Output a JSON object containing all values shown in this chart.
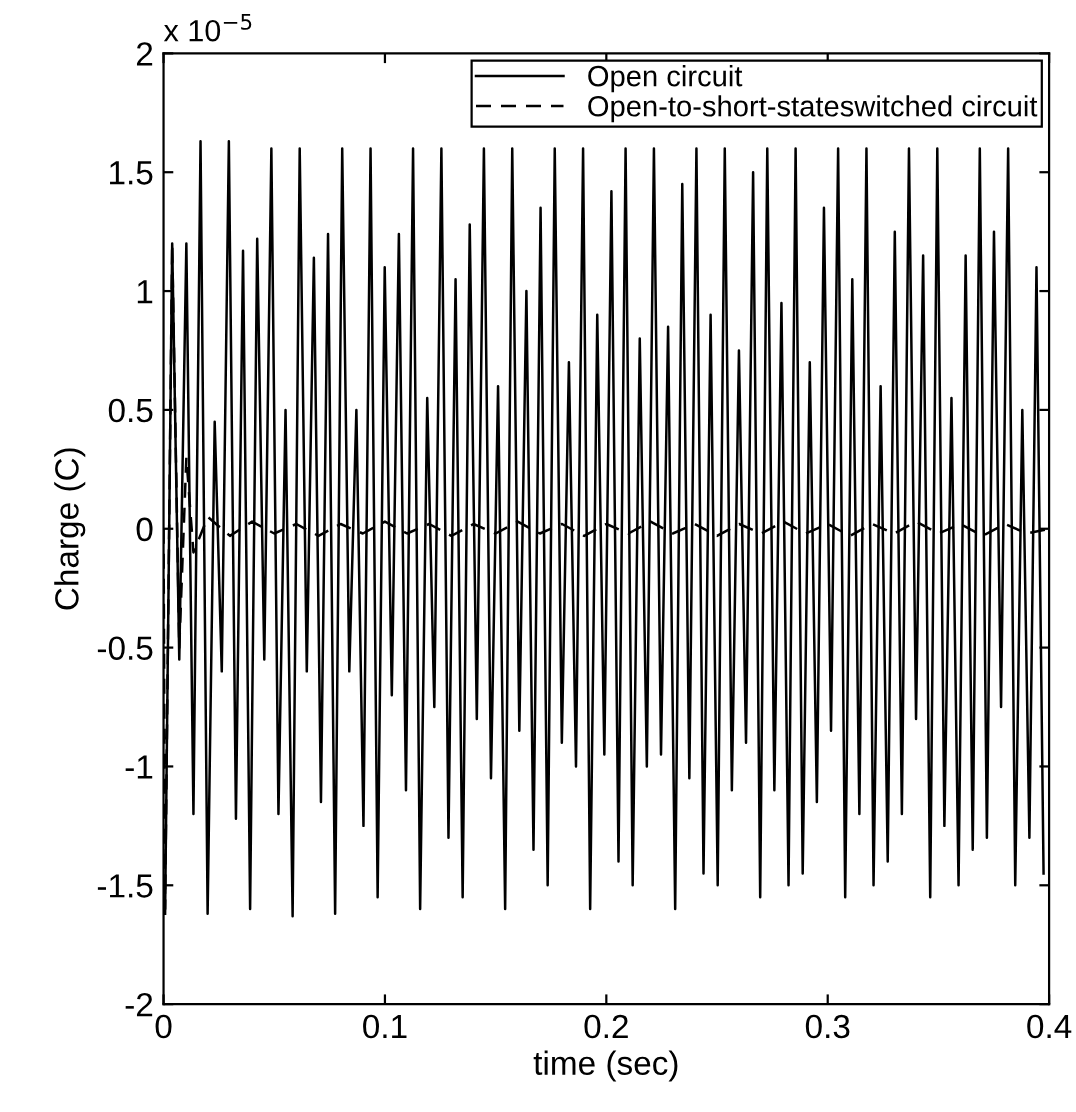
{
  "chart_data": {
    "type": "line",
    "xlabel": "time (sec)",
    "ylabel": "Charge (C)",
    "annotations": [
      "x 10$^{−5}$"
    ],
    "xlim": [
      0,
      0.4
    ],
    "xticks": [
      0,
      0.1,
      0.2,
      0.3,
      0.4
    ],
    "ylim": [
      -2,
      2
    ],
    "yticks": [
      -2,
      -1.5,
      -1,
      -0.5,
      0,
      0.5,
      1,
      1.5,
      2
    ],
    "grid": false,
    "legend": "top right",
    "marker": "none",
    "series": [
      {
        "name": "Open circuit",
        "color": "#000000",
        "line_style": "solid",
        "x": [
          0.0007,
          0.0039,
          0.0071,
          0.0103,
          0.0135,
          0.0167,
          0.0199,
          0.0231,
          0.0263,
          0.0295,
          0.0327,
          0.0359,
          0.0391,
          0.0423,
          0.0455,
          0.0487,
          0.0519,
          0.0551,
          0.0583,
          0.0615,
          0.0647,
          0.0679,
          0.0711,
          0.0743,
          0.0775,
          0.0807,
          0.0839,
          0.0871,
          0.0903,
          0.0935,
          0.0967,
          0.0999,
          0.1031,
          0.1063,
          0.1095,
          0.1127,
          0.1159,
          0.1191,
          0.1223,
          0.1255,
          0.1287,
          0.1319,
          0.1351,
          0.1383,
          0.1415,
          0.1447,
          0.1479,
          0.1511,
          0.1543,
          0.1575,
          0.1607,
          0.1639,
          0.1671,
          0.1703,
          0.1735,
          0.1767,
          0.1799,
          0.1831,
          0.1863,
          0.1895,
          0.1927,
          0.1959,
          0.1991,
          0.2023,
          0.2055,
          0.2087,
          0.2119,
          0.2151,
          0.2183,
          0.2215,
          0.2247,
          0.2279,
          0.2311,
          0.2343,
          0.2375,
          0.2407,
          0.2439,
          0.2471,
          0.2503,
          0.2535,
          0.2567,
          0.2599,
          0.2631,
          0.2663,
          0.2695,
          0.2727,
          0.2759,
          0.2791,
          0.2823,
          0.2855,
          0.2887,
          0.2919,
          0.2951,
          0.2983,
          0.3015,
          0.3047,
          0.3079,
          0.3111,
          0.3143,
          0.3175,
          0.3207,
          0.3239,
          0.3271,
          0.3303,
          0.3335,
          0.3367,
          0.3399,
          0.3431,
          0.3463,
          0.3495,
          0.3527,
          0.3559,
          0.3591,
          0.3623,
          0.3655,
          0.3687,
          0.3719,
          0.3751,
          0.3783,
          0.3815,
          0.3847,
          0.3879,
          0.3911,
          0.3943,
          0.3975
        ],
        "values": [
          -1.62,
          1.2,
          -0.55,
          1.2,
          -1.2,
          1.63,
          -1.62,
          0.45,
          -0.6,
          1.63,
          -1.22,
          1.17,
          -1.6,
          1.22,
          -0.55,
          1.6,
          -1.2,
          0.5,
          -1.63,
          1.6,
          -0.6,
          1.14,
          -1.15,
          1.24,
          -1.62,
          1.6,
          -0.6,
          0.5,
          -1.25,
          1.6,
          -1.55,
          1.1,
          -0.7,
          1.24,
          -1.1,
          1.6,
          -1.6,
          0.55,
          -0.75,
          1.6,
          -1.3,
          1.05,
          -1.55,
          1.28,
          -0.8,
          1.6,
          -1.05,
          0.6,
          -1.6,
          1.6,
          -0.85,
          1.0,
          -1.35,
          1.35,
          -1.5,
          1.6,
          -0.9,
          0.7,
          -1.0,
          1.6,
          -1.6,
          0.9,
          -0.95,
          1.42,
          -1.4,
          1.6,
          -1.5,
          0.8,
          -1.0,
          1.6,
          -0.95,
          0.85,
          -1.6,
          1.45,
          -1.05,
          1.6,
          -1.45,
          0.9,
          -1.5,
          1.6,
          -1.1,
          0.75,
          -0.9,
          1.5,
          -1.55,
          1.6,
          -1.1,
          0.95,
          -1.5,
          1.6,
          -1.45,
          0.7,
          -1.15,
          1.35,
          -0.85,
          1.6,
          -1.55,
          1.05,
          -1.2,
          1.6,
          -1.5,
          0.6,
          -1.4,
          1.25,
          -1.2,
          1.6,
          -0.8,
          1.15,
          -1.55,
          1.6,
          -1.25,
          0.55,
          -1.5,
          1.15,
          -1.35,
          1.6,
          -1.3,
          1.25,
          -0.75,
          1.6,
          -1.5,
          0.5,
          -1.3,
          1.1,
          -1.45
        ]
      },
      {
        "name": "Open-to-short-stateswitched circuit",
        "color": "#000000",
        "line_style": "dashed",
        "x": [
          0,
          0.0007,
          0.0039,
          0.0071,
          0.0103,
          0.0135,
          0.02,
          0.03,
          0.04,
          0.05,
          0.06,
          0.07,
          0.08,
          0.09,
          0.1,
          0.11,
          0.12,
          0.13,
          0.14,
          0.15,
          0.16,
          0.17,
          0.18,
          0.19,
          0.2,
          0.21,
          0.22,
          0.23,
          0.24,
          0.25,
          0.26,
          0.27,
          0.28,
          0.29,
          0.3,
          0.31,
          0.32,
          0.33,
          0.34,
          0.35,
          0.36,
          0.37,
          0.38,
          0.39,
          0.4
        ],
        "values": [
          0,
          -1.6,
          1.2,
          -0.5,
          0.3,
          -0.1,
          0.05,
          -0.03,
          0.03,
          -0.02,
          0.02,
          -0.03,
          0.02,
          -0.02,
          0.03,
          -0.02,
          0.02,
          -0.03,
          0.02,
          -0.02,
          0.03,
          -0.02,
          0.02,
          -0.03,
          0.02,
          -0.02,
          0.03,
          -0.02,
          0.02,
          -0.03,
          0.02,
          -0.02,
          0.03,
          -0.02,
          0.02,
          -0.03,
          0.02,
          -0.02,
          0.03,
          -0.02,
          0.02,
          -0.03,
          0.02,
          -0.02,
          0.0
        ]
      }
    ]
  }
}
